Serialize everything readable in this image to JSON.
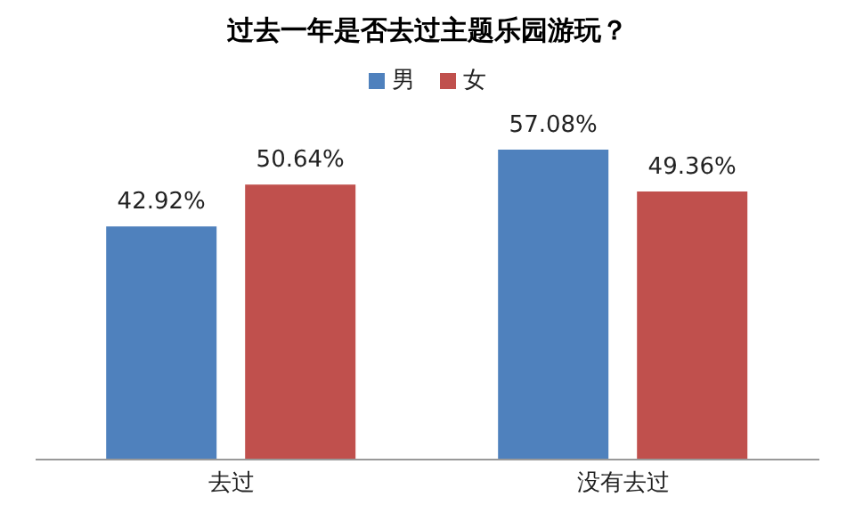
{
  "chart_data": {
    "type": "bar",
    "title": "过去一年是否去过主题乐园游玩？",
    "categories": [
      "去过",
      "没有去过"
    ],
    "series": [
      {
        "name": "男",
        "color": "#4f81bd",
        "values": [
          42.92,
          57.08
        ],
        "value_labels": [
          "42.92%",
          "57.08%"
        ]
      },
      {
        "name": "女",
        "color": "#c0504d",
        "values": [
          50.64,
          49.36
        ],
        "value_labels": [
          "50.64%",
          "49.36%"
        ]
      }
    ],
    "legend": "top",
    "grid": false
  }
}
